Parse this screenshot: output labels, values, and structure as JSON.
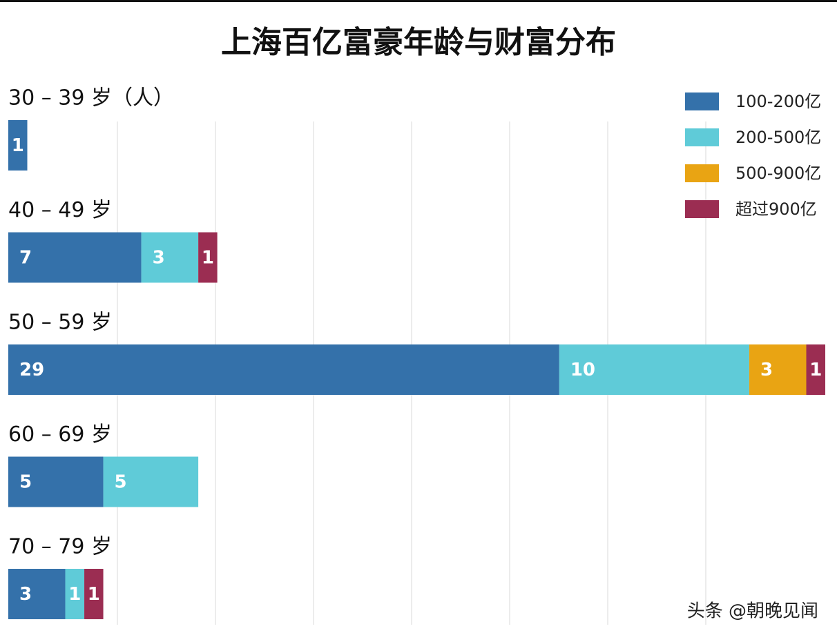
{
  "chart_data": {
    "type": "stacked-barh",
    "title": "上海百亿富豪年龄与财富分布",
    "categories": [
      "30 – 39 岁（人）",
      "40 – 49 岁",
      "50 – 59 岁",
      "60 – 69 岁",
      "70 – 79 岁"
    ],
    "series": [
      {
        "name": "100-200亿",
        "color": "#3471aa",
        "values": [
          1,
          7,
          29,
          5,
          3
        ]
      },
      {
        "name": "200-500亿",
        "color": "#5fcbd8",
        "values": [
          null,
          3,
          10,
          5,
          1
        ]
      },
      {
        "name": "500-900亿",
        "color": "#e9a413",
        "values": [
          null,
          null,
          3,
          null,
          null
        ]
      },
      {
        "name": "超过900亿",
        "color": "#9b2d52",
        "values": [
          null,
          1,
          1,
          null,
          1
        ]
      }
    ],
    "xlim": [
      0,
      43
    ],
    "legend": "top-right",
    "watermark": "头条 @朝晚见闻"
  }
}
